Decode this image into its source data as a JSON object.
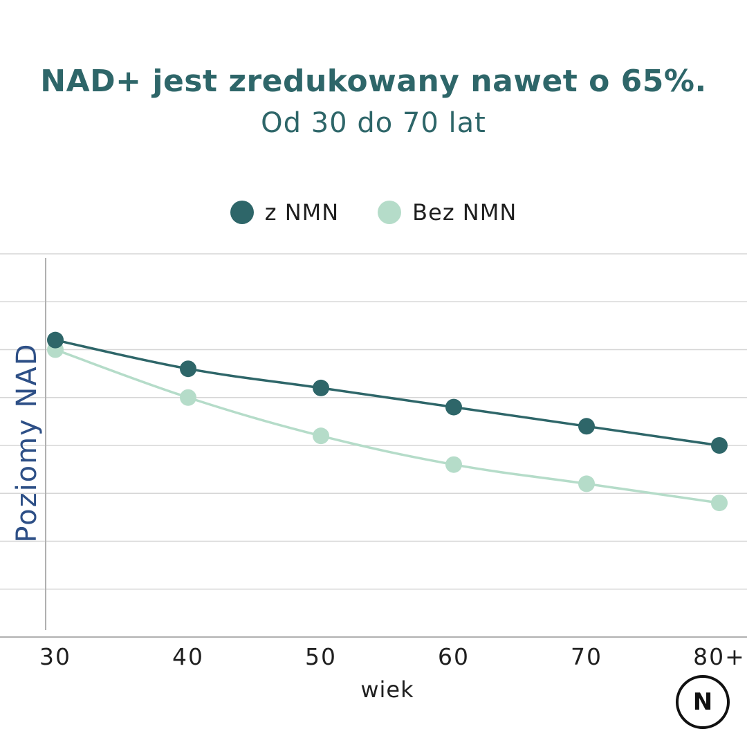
{
  "header": {
    "title": "NAD+ jest zredukowany nawet o 65%.",
    "subtitle": "Od 30 do 70 lat"
  },
  "logo": {
    "letter": "N"
  },
  "colors": {
    "dark": "#2e6669",
    "light": "#b5dcc9",
    "ylabel": "#2d4f86",
    "grid": "#d6d6d6",
    "axis": "#b0b0b0",
    "text": "#1f1f1f"
  },
  "chart_data": {
    "type": "line",
    "title": "NAD+ jest zredukowany nawet o 65%.",
    "subtitle": "Od 30 do 70 lat",
    "xlabel": "wiek",
    "ylabel": "Poziomy NAD",
    "categories": [
      "30",
      "40",
      "50",
      "60",
      "70",
      "80+"
    ],
    "series": [
      {
        "name": "z NMN",
        "color": "#2e6669",
        "values": [
          6.2,
          5.6,
          5.2,
          4.8,
          4.4,
          4.0
        ]
      },
      {
        "name": "Bez NMN",
        "color": "#b5dcc9",
        "values": [
          6.0,
          5.0,
          4.2,
          3.6,
          3.2,
          2.8
        ]
      }
    ],
    "ylim": [
      0,
      8
    ],
    "yticks": [
      0,
      1,
      2,
      3,
      4,
      5,
      6,
      7,
      8
    ],
    "grid": true,
    "legend_position": "top-center"
  }
}
